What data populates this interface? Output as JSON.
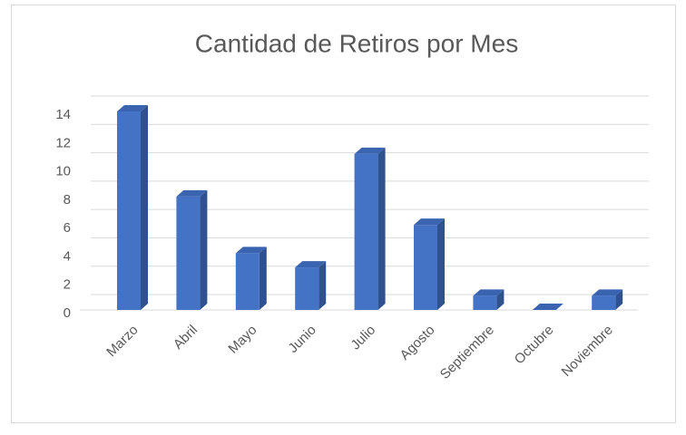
{
  "chart_data": {
    "type": "bar",
    "title": "Cantidad de Retiros por Mes",
    "categories": [
      "Marzo",
      "Abril",
      "Mayo",
      "Junio",
      "Julio",
      "Agosto",
      "Septiembre",
      "Octubre",
      "Noviembre"
    ],
    "values": [
      14,
      8,
      4,
      3,
      11,
      6,
      1,
      0,
      1
    ],
    "color": "#4472c4",
    "ylim": [
      0,
      14
    ],
    "yticks": [
      0,
      2,
      4,
      6,
      8,
      10,
      12,
      14
    ],
    "grid": true
  }
}
